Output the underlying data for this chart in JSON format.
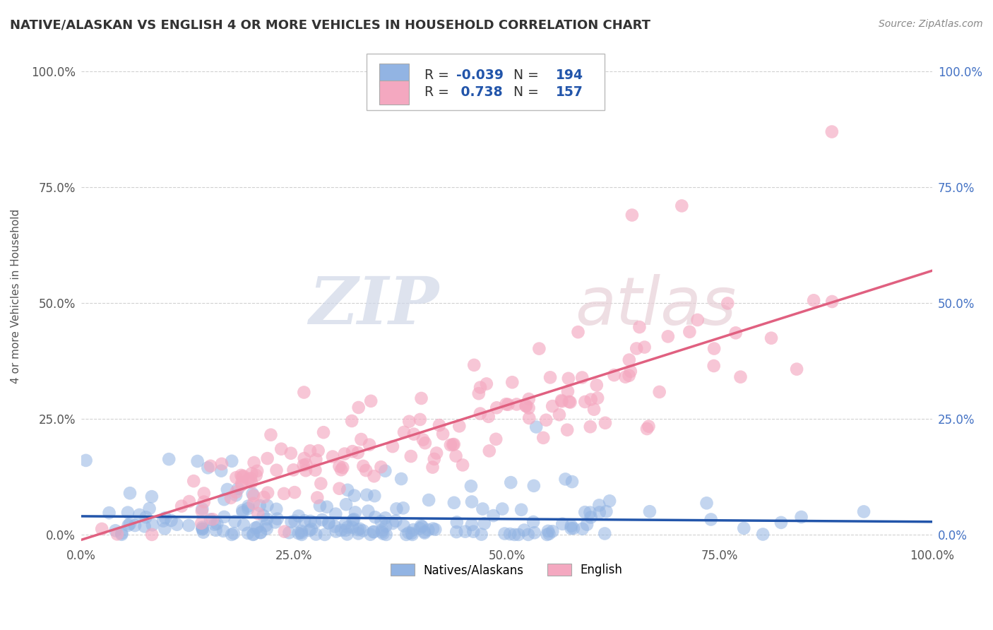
{
  "title": "NATIVE/ALASKAN VS ENGLISH 4 OR MORE VEHICLES IN HOUSEHOLD CORRELATION CHART",
  "source": "Source: ZipAtlas.com",
  "ylabel": "4 or more Vehicles in Household",
  "xlim": [
    0.0,
    1.0
  ],
  "ylim": [
    -0.02,
    1.05
  ],
  "blue_R": -0.039,
  "blue_N": 194,
  "pink_R": 0.738,
  "pink_N": 157,
  "blue_color": "#92b4e3",
  "pink_color": "#f4a8c0",
  "blue_line_color": "#2255aa",
  "pink_line_color": "#e06080",
  "watermark_zip": "ZIP",
  "watermark_atlas": "atlas",
  "legend_label_blue": "Natives/Alaskans",
  "legend_label_pink": "English",
  "xtick_labels": [
    "0.0%",
    "25.0%",
    "50.0%",
    "75.0%",
    "100.0%"
  ],
  "xtick_vals": [
    0.0,
    0.25,
    0.5,
    0.75,
    1.0
  ],
  "ytick_labels": [
    "0.0%",
    "25.0%",
    "50.0%",
    "75.0%",
    "100.0%"
  ],
  "ytick_vals": [
    0.0,
    0.25,
    0.5,
    0.75,
    1.0
  ],
  "background_color": "#ffffff",
  "grid_color": "#cccccc",
  "right_ytick_color": "#4472c4"
}
